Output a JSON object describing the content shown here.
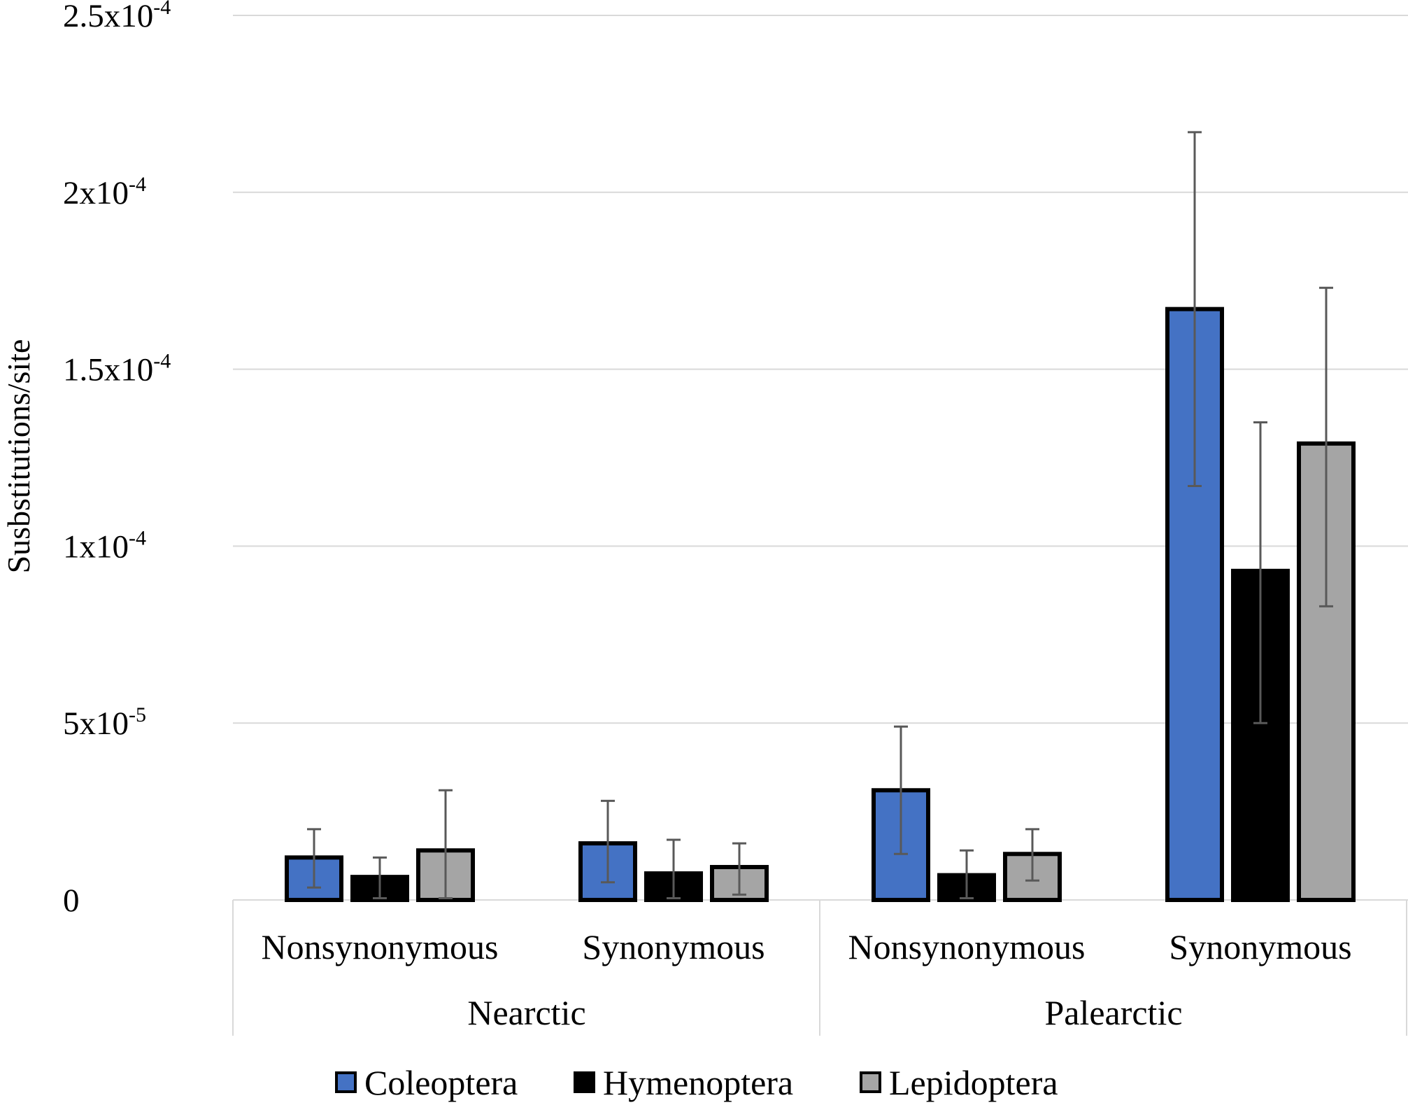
{
  "chart_data": {
    "type": "bar",
    "title": "",
    "ylabel": "Susbstitutions/site",
    "xlabel": "",
    "ylim": [
      0,
      0.00025
    ],
    "y_ticks": [
      {
        "value": 0,
        "base": "0",
        "exp": ""
      },
      {
        "value": 5e-05,
        "base": "5x10",
        "exp": "-5"
      },
      {
        "value": 0.0001,
        "base": "1x10",
        "exp": "-4"
      },
      {
        "value": 0.00015,
        "base": "1.5x10",
        "exp": "-4"
      },
      {
        "value": 0.0002,
        "base": "2x10",
        "exp": "-4"
      },
      {
        "value": 0.00025,
        "base": "2.5x10",
        "exp": "-4"
      }
    ],
    "groups": [
      {
        "label": "Nearctic",
        "categories": [
          "Nonsynonymous",
          "Synonymous"
        ]
      },
      {
        "label": "Palearctic",
        "categories": [
          "Nonsynonymous",
          "Synonymous"
        ]
      }
    ],
    "categories": [
      "Nonsynonymous",
      "Synonymous",
      "Nonsynonymous",
      "Synonymous"
    ],
    "series": [
      {
        "name": "Coleoptera",
        "color": "#4472C4",
        "values": [
          1.2e-05,
          1.6e-05,
          3.1e-05,
          0.000167
        ],
        "err_low": [
          3.5e-06,
          5e-06,
          1.3e-05,
          0.000117
        ],
        "err_high": [
          2e-05,
          2.8e-05,
          4.9e-05,
          0.000217
        ]
      },
      {
        "name": "Hymenoptera",
        "color": "#000000",
        "values": [
          6.5e-06,
          7.5e-06,
          7e-06,
          9.3e-05
        ],
        "err_low": [
          5e-07,
          5e-07,
          5e-07,
          5e-05
        ],
        "err_high": [
          1.2e-05,
          1.7e-05,
          1.4e-05,
          0.000135
        ]
      },
      {
        "name": "Lepidoptera",
        "color": "#A5A5A5",
        "values": [
          1.4e-05,
          9.3e-06,
          1.3e-05,
          0.000129
        ],
        "err_low": [
          5e-07,
          1.5e-06,
          5.5e-06,
          8.3e-05
        ],
        "err_high": [
          3.1e-05,
          1.6e-05,
          2e-05,
          0.000173
        ]
      }
    ],
    "grid": true,
    "legend_position": "bottom"
  }
}
